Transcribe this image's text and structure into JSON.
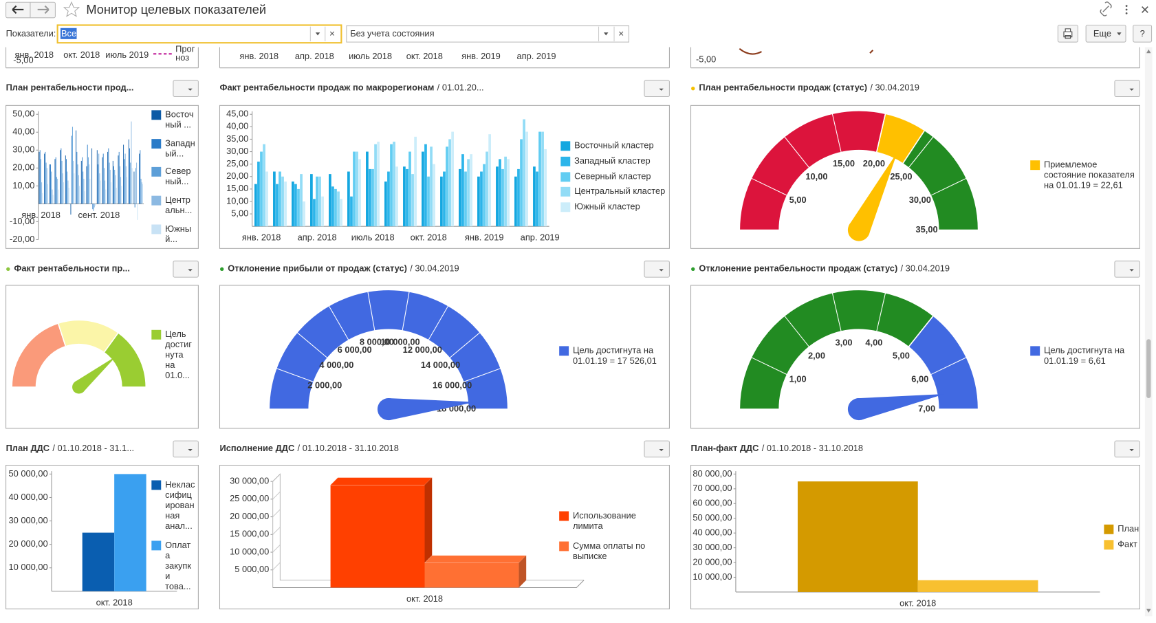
{
  "header": {
    "title": "Монитор целевых показателей",
    "filter_label": "Показатели:",
    "filter_value": "Все",
    "state_value": "Без учета состояния",
    "more_button": "Еще",
    "help_button": "?"
  },
  "top_strip": {
    "left_labels": [
      "янв. 2018",
      "окт. 2018",
      "июль 2019"
    ],
    "left_value": "-5,00",
    "left_legend": [
      "Прог",
      "ноз"
    ],
    "mid_labels": [
      "янв. 2018",
      "апр. 2018",
      "июль 2018",
      "окт. 2018",
      "янв. 2019",
      "апр. 2019"
    ],
    "right_value": "-5,00"
  },
  "panels": [
    {
      "title": "План рентабельности прод...",
      "type": "bar",
      "ylim": [
        -20,
        50
      ],
      "yticks": [
        {
          "value": 50,
          "label": "50,00"
        },
        {
          "value": 40,
          "label": "40,00"
        },
        {
          "value": 30,
          "label": "30,00"
        },
        {
          "value": 20,
          "label": "20,00"
        },
        {
          "value": 10,
          "label": "10,00"
        },
        {
          "value": -10,
          "label": "-10,00"
        },
        {
          "value": -20,
          "label": "-20,00"
        }
      ],
      "categories": [
        "янв. 2018",
        null,
        null,
        null,
        null,
        null,
        null,
        null,
        null,
        null,
        null,
        "сент. 2018",
        null,
        null,
        null,
        null,
        null,
        null,
        null,
        null
      ],
      "series": [
        {
          "name": [
            "Восточ",
            "ный ..."
          ],
          "color": "#0b5aa6",
          "values": [
            29,
            28,
            22,
            25,
            30,
            27,
            -6,
            41,
            24,
            21,
            31,
            30,
            26,
            29,
            24,
            27,
            33,
            36,
            18,
            28
          ]
        },
        {
          "name": [
            "Западн",
            "ый..."
          ],
          "color": "#2a7bc8",
          "values": [
            30,
            29,
            22,
            26,
            31,
            25,
            38,
            29,
            26,
            33,
            -3,
            22,
            28,
            31,
            21,
            29,
            25,
            31,
            -2,
            30
          ]
        },
        {
          "name": [
            "Север",
            "ный..."
          ],
          "color": "#5d9fd8",
          "values": [
            25,
            23,
            18,
            15,
            24,
            18,
            43,
            22,
            18,
            26,
            -4,
            28,
            20,
            23,
            19,
            21,
            28,
            23,
            20,
            14
          ]
        },
        {
          "name": [
            "Центр",
            "альн..."
          ],
          "color": "#8cb9e2",
          "values": [
            12,
            20,
            8,
            14,
            17,
            13,
            24,
            16,
            14,
            22,
            -2,
            17,
            13,
            19,
            16,
            15,
            21,
            46,
            23,
            12
          ]
        },
        {
          "name": [
            "Южны",
            "й..."
          ],
          "color": "#c8e2f5",
          "values": [
            6,
            11,
            5,
            8,
            12,
            9,
            17,
            10,
            7,
            14,
            -1,
            13,
            8,
            12,
            9,
            10,
            15,
            20,
            -9,
            11
          ]
        }
      ]
    },
    {
      "title": "Факт рентабельности продаж по макрорегионам",
      "subtitle": "/ 01.01.20...",
      "type": "bar",
      "ylim": [
        0,
        45
      ],
      "yticks": [
        {
          "value": 45,
          "label": "45,00"
        },
        {
          "value": 40,
          "label": "40,00"
        },
        {
          "value": 35,
          "label": "35,00"
        },
        {
          "value": 30,
          "label": "30,00"
        },
        {
          "value": 25,
          "label": "25,00"
        },
        {
          "value": 20,
          "label": "20,00"
        },
        {
          "value": 15,
          "label": "15,00"
        },
        {
          "value": 10,
          "label": "10,00"
        },
        {
          "value": 5,
          "label": "5,00"
        }
      ],
      "categories": [
        "янв. 2018",
        null,
        null,
        "апр. 2018",
        null,
        null,
        "июль 2018",
        null,
        null,
        "окт. 2018",
        null,
        null,
        "янв. 2019",
        null,
        null,
        "апр. 2019"
      ],
      "series": [
        {
          "name": "Восточный кластер",
          "color": "#14a7e0",
          "values": [
            17,
            22,
            18,
            21,
            21,
            22,
            30,
            18,
            24,
            30,
            20,
            23,
            20,
            24,
            20,
            24
          ]
        },
        {
          "name": "Западный кластер",
          "color": "#2cb5ea",
          "values": [
            26,
            17,
            17,
            11,
            16,
            12,
            23,
            22,
            23,
            33,
            22,
            29,
            22,
            27,
            23,
            22
          ]
        },
        {
          "name": "Северный кластер",
          "color": "#62cdf2",
          "values": [
            30,
            22,
            15,
            20,
            15,
            30,
            23,
            33,
            30,
            20,
            32,
            22,
            25,
            23,
            35,
            38
          ]
        },
        {
          "name": "Центральный кластер",
          "color": "#92dcf6",
          "values": [
            33,
            20,
            21,
            20,
            14,
            30,
            33,
            34,
            21,
            32,
            35,
            27,
            30,
            28,
            43,
            38
          ]
        },
        {
          "name": "Южный кластер",
          "color": "#ccedfa",
          "values": [
            22,
            18,
            10,
            12,
            11,
            27,
            34,
            24,
            36,
            25,
            38,
            29,
            37,
            27,
            38,
            31
          ]
        }
      ]
    },
    {
      "title": "План рентабельности продаж (статус)",
      "subtitle": "/ 30.04.2019",
      "dot_color": "#f5c000",
      "type": "gauge",
      "min": 0,
      "max": 35,
      "ticks": [
        {
          "value": 5,
          "label": "5,00"
        },
        {
          "value": 10,
          "label": "10,00"
        },
        {
          "value": 15,
          "label": "15,00"
        },
        {
          "value": 20,
          "label": "20,00"
        },
        {
          "value": 25,
          "label": "25,00"
        },
        {
          "value": 30,
          "label": "30,00"
        },
        {
          "value": 35,
          "label": "35,00"
        }
      ],
      "bands": [
        {
          "from": 0,
          "to": 20,
          "color": "#dc143c"
        },
        {
          "from": 20,
          "to": 24,
          "color": "#ffc000"
        },
        {
          "from": 24,
          "to": 35,
          "color": "#228b22"
        }
      ],
      "value": 22.61,
      "needle_color": "#ffc000",
      "legend": [
        "Приемлемое",
        "состояние показателя",
        "на 01.01.19 = 22,61"
      ]
    },
    {
      "title": "Факт рентабельности пр...",
      "dot_color": "#8dc63f",
      "type": "gauge",
      "min": 0,
      "max": 100,
      "bands": [
        {
          "from": 0,
          "to": 40,
          "color": "#fa9a7a"
        },
        {
          "from": 40,
          "to": 70,
          "color": "#fbf5a8"
        },
        {
          "from": 70,
          "to": 100,
          "color": "#9acd32"
        }
      ],
      "value": 78,
      "needle_color": "#9acd32",
      "legend": [
        "Цель",
        "достиг",
        "нута",
        "на",
        "01.0..."
      ]
    },
    {
      "title": "Отклонение прибыли от продаж (статус)",
      "subtitle": "/ 30.04.2019",
      "dot_color": "#2e9e2e",
      "type": "gauge",
      "min": 0,
      "max": 18000,
      "ticks": [
        {
          "value": 2000,
          "label": "2 000,00"
        },
        {
          "value": 4000,
          "label": "4 000,00"
        },
        {
          "value": 6000,
          "label": "6 000,00"
        },
        {
          "value": 8000,
          "label": "8 000,00"
        },
        {
          "value": 10000,
          "label": "10 000,00"
        },
        {
          "value": 12000,
          "label": "12 000,00"
        },
        {
          "value": 14000,
          "label": "14 000,00"
        },
        {
          "value": 16000,
          "label": "16 000,00"
        },
        {
          "value": 18000,
          "label": "18 000,00"
        }
      ],
      "bands": [
        {
          "from": 0,
          "to": 18000,
          "color": "#4169e1"
        }
      ],
      "value": 17526.01,
      "needle_color": "#4169e1",
      "legend": [
        "Цель достигнута на",
        "01.01.19 = 17 526,01"
      ]
    },
    {
      "title": "Отклонение рентабельности продаж (статус)",
      "subtitle": "/ 30.04.2019",
      "dot_color": "#2e9e2e",
      "type": "gauge",
      "min": 0,
      "max": 7,
      "ticks": [
        {
          "value": 1,
          "label": "1,00"
        },
        {
          "value": 2,
          "label": "2,00"
        },
        {
          "value": 3,
          "label": "3,00"
        },
        {
          "value": 4,
          "label": "4,00"
        },
        {
          "value": 5,
          "label": "5,00"
        },
        {
          "value": 6,
          "label": "6,00"
        },
        {
          "value": 7,
          "label": "7,00"
        }
      ],
      "bands": [
        {
          "from": 0,
          "to": 5,
          "color": "#228b22"
        },
        {
          "from": 5,
          "to": 7,
          "color": "#4169e1"
        }
      ],
      "value": 6.61,
      "needle_color": "#4169e1",
      "legend": [
        "Цель достигнута на",
        "01.01.19 = 6,61"
      ]
    },
    {
      "title": "План ДДС",
      "subtitle": "/ 01.10.2018 - 31.1...",
      "type": "bar",
      "ylim": [
        0,
        50000
      ],
      "yticks": [
        {
          "value": 50000,
          "label": "50 000,00"
        },
        {
          "value": 40000,
          "label": "40 000,00"
        },
        {
          "value": 30000,
          "label": "30 000,00"
        },
        {
          "value": 20000,
          "label": "20 000,00"
        },
        {
          "value": 10000,
          "label": "10 000,00"
        }
      ],
      "categories": [
        "окт. 2018"
      ],
      "series": [
        {
          "name": [
            "Неклас",
            "сифиц",
            "ирован",
            "ная",
            "анал..."
          ],
          "color": "#0a5eb0",
          "values": [
            25000
          ]
        },
        {
          "name": [
            "Оплат",
            "а",
            "закупк",
            "и",
            "това..."
          ],
          "color": "#3aa0f0",
          "values": [
            50000
          ]
        }
      ]
    },
    {
      "title": "Исполнение ДДС",
      "subtitle": "/ 01.10.2018 - 31.10.2018",
      "type": "bar3d",
      "ylim": [
        0,
        30000
      ],
      "yticks": [
        {
          "value": 30000,
          "label": "30 000,00"
        },
        {
          "value": 25000,
          "label": "25 000,00"
        },
        {
          "value": 20000,
          "label": "20 000,00"
        },
        {
          "value": 15000,
          "label": "15 000,00"
        },
        {
          "value": 10000,
          "label": "10 000,00"
        },
        {
          "value": 5000,
          "label": "5 000,00"
        }
      ],
      "categories": [
        "окт. 2018"
      ],
      "series": [
        {
          "name": [
            "Использование",
            "лимита"
          ],
          "color": "#ff4000",
          "values": [
            29000
          ]
        },
        {
          "name": [
            "Сумма оплаты по",
            "выписке"
          ],
          "color": "#ff7033",
          "values": [
            7000
          ]
        }
      ]
    },
    {
      "title": "План-факт ДДС",
      "subtitle": "/ 01.10.2018 - 31.10.2018",
      "type": "bar",
      "ylim": [
        0,
        80000
      ],
      "yticks": [
        {
          "value": 80000,
          "label": "80 000,00"
        },
        {
          "value": 70000,
          "label": "70 000,00"
        },
        {
          "value": 60000,
          "label": "60 000,00"
        },
        {
          "value": 50000,
          "label": "50 000,00"
        },
        {
          "value": 40000,
          "label": "40 000,00"
        },
        {
          "value": 30000,
          "label": "30 000,00"
        },
        {
          "value": 20000,
          "label": "20 000,00"
        },
        {
          "value": 10000,
          "label": "10 000,00"
        }
      ],
      "categories": [
        "окт. 2018"
      ],
      "series": [
        {
          "name": "План",
          "color": "#d49a00",
          "values": [
            75000
          ]
        },
        {
          "name": "Факт",
          "color": "#f8c030",
          "values": [
            8000
          ]
        }
      ]
    }
  ]
}
